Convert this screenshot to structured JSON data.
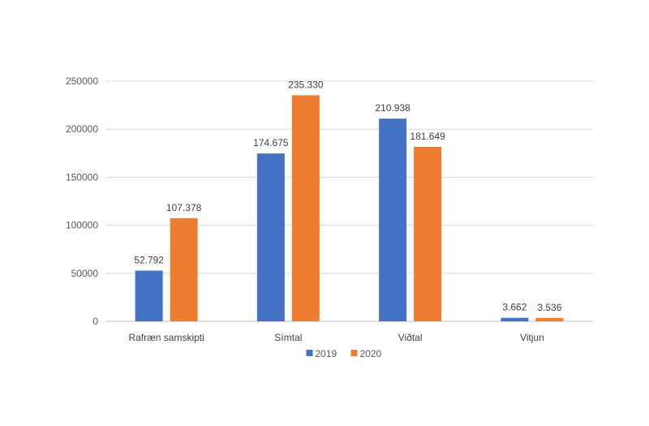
{
  "chart_data": {
    "type": "bar",
    "title": "",
    "xlabel": "",
    "ylabel": "",
    "categories": [
      "Rafræn samskipti",
      "Símtal",
      "Viðtal",
      "Vitjun"
    ],
    "series": [
      {
        "name": "2019",
        "color": "#4472C4",
        "values": [
          52792,
          174675,
          210938,
          3662
        ],
        "labels": [
          "52.792",
          "174.675",
          "210.938",
          "3.662"
        ]
      },
      {
        "name": "2020",
        "color": "#ED7D31",
        "values": [
          107378,
          235330,
          181649,
          3536
        ],
        "labels": [
          "107.378",
          "235.330",
          "181.649",
          "3.536"
        ]
      }
    ],
    "ylim": [
      0,
      250000
    ],
    "yticks": [
      "0",
      "50000",
      "100000",
      "150000",
      "200000",
      "250000"
    ],
    "grid": true,
    "legend": "bottom"
  }
}
